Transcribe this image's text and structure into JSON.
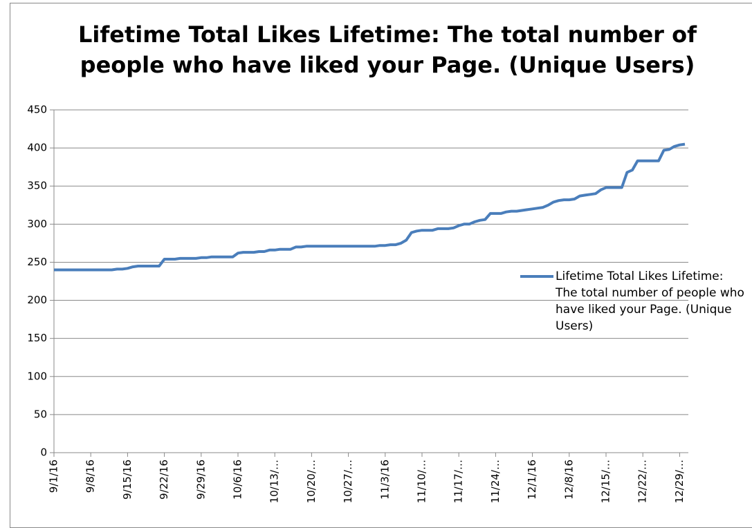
{
  "chart_data": {
    "type": "line",
    "title": "Lifetime Total Likes Lifetime: The total number of people who have liked your Page. (Unique Users)",
    "categories": [
      "9/1/16",
      null,
      null,
      null,
      null,
      null,
      null,
      "9/8/16",
      null,
      null,
      null,
      null,
      null,
      null,
      "9/15/16",
      null,
      null,
      null,
      null,
      null,
      null,
      "9/22/16",
      null,
      null,
      null,
      null,
      null,
      null,
      "9/29/16",
      null,
      null,
      null,
      null,
      null,
      null,
      "10/6/16",
      null,
      null,
      null,
      null,
      null,
      null,
      "10/13/…",
      null,
      null,
      null,
      null,
      null,
      null,
      "10/20/…",
      null,
      null,
      null,
      null,
      null,
      null,
      "10/27/…",
      null,
      null,
      null,
      null,
      null,
      null,
      "11/3/16",
      null,
      null,
      null,
      null,
      null,
      null,
      "11/10/…",
      null,
      null,
      null,
      null,
      null,
      null,
      "11/17/…",
      null,
      null,
      null,
      null,
      null,
      null,
      "11/24/…",
      null,
      null,
      null,
      null,
      null,
      null,
      "12/1/16",
      null,
      null,
      null,
      null,
      null,
      null,
      "12/8/16",
      null,
      null,
      null,
      null,
      null,
      null,
      "12/15/…",
      null,
      null,
      null,
      null,
      null,
      null,
      "12/22/…",
      null,
      null,
      null,
      null,
      null,
      null,
      "12/29/…",
      null
    ],
    "series": [
      {
        "name": "Lifetime Total Likes Lifetime: The total number of people who have liked your Page. (Unique Users)",
        "color": "#4a7ebb",
        "values": [
          240,
          240,
          240,
          240,
          240,
          240,
          240,
          240,
          240,
          240,
          240,
          240,
          241,
          241,
          242,
          244,
          245,
          245,
          245,
          245,
          245,
          254,
          254,
          254,
          255,
          255,
          255,
          255,
          256,
          256,
          257,
          257,
          257,
          257,
          257,
          262,
          263,
          263,
          263,
          264,
          264,
          266,
          266,
          267,
          267,
          267,
          270,
          270,
          271,
          271,
          271,
          271,
          271,
          271,
          271,
          271,
          271,
          271,
          271,
          271,
          271,
          271,
          272,
          272,
          273,
          273,
          275,
          279,
          289,
          291,
          292,
          292,
          292,
          294,
          294,
          294,
          295,
          298,
          300,
          300,
          303,
          305,
          306,
          314,
          314,
          314,
          316,
          317,
          317,
          318,
          319,
          320,
          321,
          322,
          325,
          329,
          331,
          332,
          332,
          333,
          337,
          338,
          339,
          340,
          345,
          348,
          348,
          348,
          348,
          368,
          371,
          383,
          383,
          383,
          383,
          383,
          397,
          398,
          402,
          404,
          405
        ]
      }
    ],
    "ylim": [
      0,
      450
    ],
    "yticks": [
      0,
      50,
      100,
      150,
      200,
      250,
      300,
      350,
      400,
      450
    ],
    "grid": true,
    "legend": "right"
  }
}
